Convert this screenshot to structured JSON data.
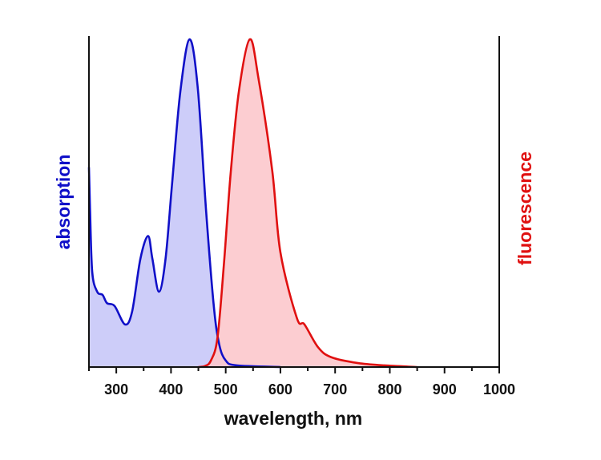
{
  "chart_data": {
    "type": "area",
    "xlabel": "wavelength, nm",
    "ylabel_left": "absorption",
    "ylabel_right": "fluorescence",
    "xlim": [
      250,
      1000
    ],
    "ylim": [
      0,
      1.01
    ],
    "x_ticks": [
      300,
      400,
      500,
      600,
      700,
      800,
      900,
      1000
    ],
    "x_tick_labels": [
      "300",
      "400",
      "500",
      "600",
      "700",
      "800",
      "900",
      "1000"
    ],
    "x_minor_ticks": [
      250,
      350,
      450,
      550,
      650,
      750,
      850,
      950
    ],
    "grid": false,
    "y_ticks_shown": false,
    "series": [
      {
        "axis": "left",
        "color": "#1010c8",
        "fill": "#c8c8f8",
        "x": [
          250,
          252,
          256,
          265,
          275,
          283,
          297,
          316,
          329,
          344,
          358,
          366,
          378,
          390,
          402,
          417,
          434,
          449,
          464,
          478,
          488,
          500,
          520,
          600
        ],
        "y": [
          0.61,
          0.48,
          0.29,
          0.23,
          0.22,
          0.195,
          0.186,
          0.13,
          0.17,
          0.33,
          0.4,
          0.33,
          0.23,
          0.33,
          0.56,
          0.84,
          1.0,
          0.85,
          0.48,
          0.19,
          0.07,
          0.02,
          0.005,
          0.0
        ]
      },
      {
        "axis": "right",
        "color": "#e01010",
        "fill": "#fcc8cc",
        "x": [
          450,
          462,
          473,
          485,
          497,
          509,
          524,
          544,
          560,
          585,
          600,
          630,
          644,
          669,
          693,
          742,
          790,
          850
        ],
        "y": [
          0.0,
          0.003,
          0.02,
          0.09,
          0.32,
          0.59,
          0.84,
          1.0,
          0.88,
          0.6,
          0.35,
          0.15,
          0.13,
          0.06,
          0.03,
          0.012,
          0.005,
          0.0
        ]
      }
    ]
  }
}
